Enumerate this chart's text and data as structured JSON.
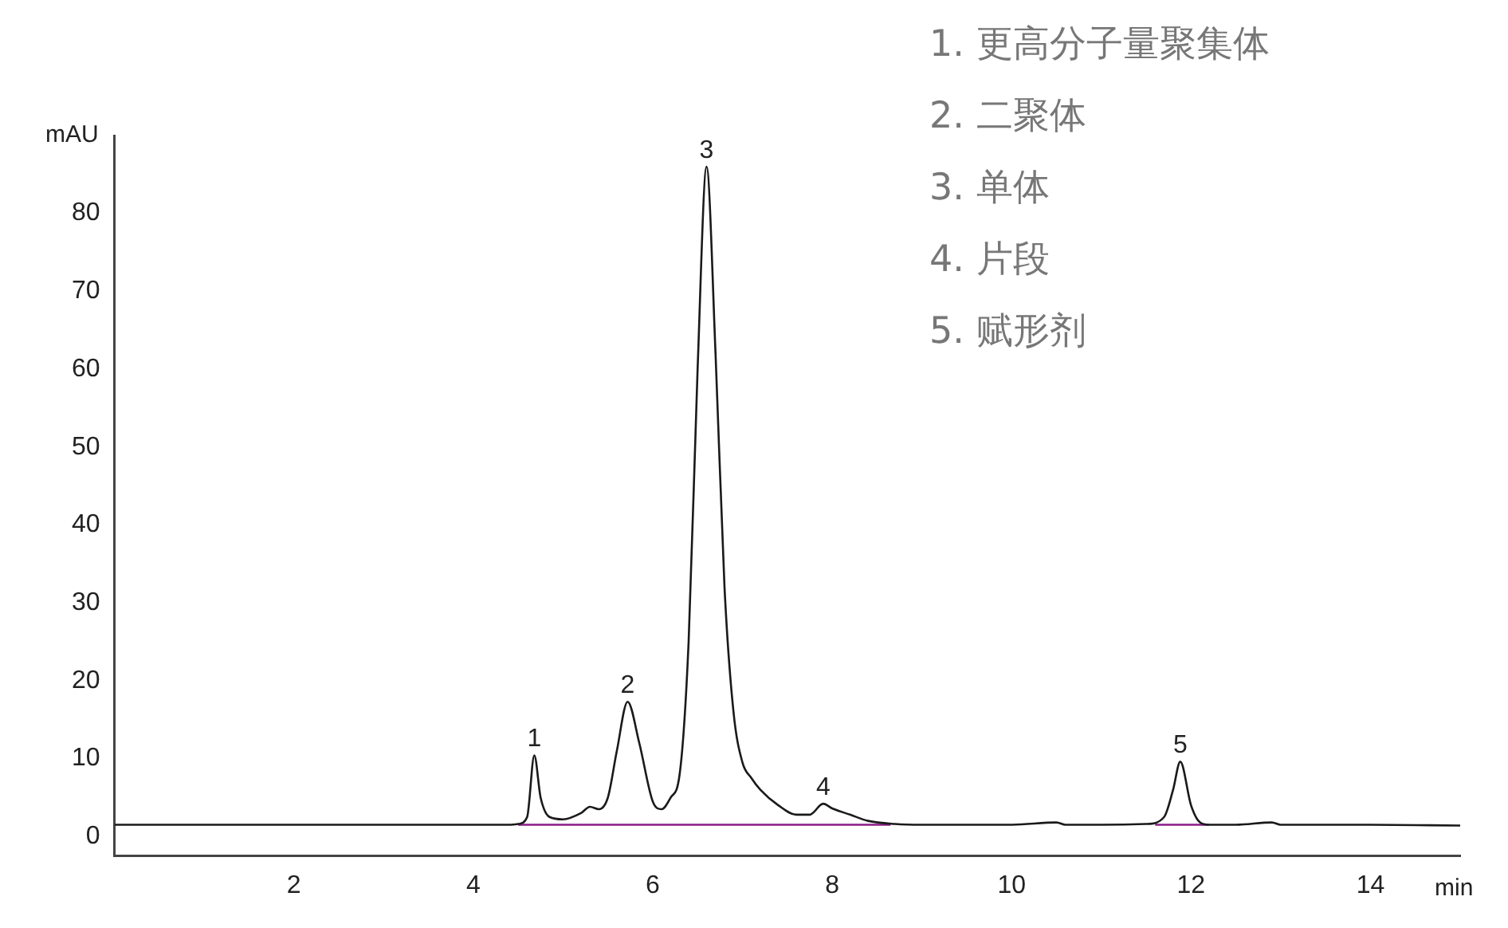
{
  "chart_data": {
    "type": "line",
    "xlabel": "min",
    "ylabel": "mAU",
    "xlim": [
      0,
      15
    ],
    "xticks": [
      2,
      4,
      6,
      8,
      10,
      12,
      14
    ],
    "ylim": [
      -2.5,
      90
    ],
    "yticks": [
      0,
      10,
      20,
      30,
      40,
      50,
      60,
      70,
      80
    ],
    "grid": false,
    "legend": false,
    "marker": "none",
    "line_style": "solid",
    "series": [
      {
        "color": "#1a1a1a",
        "x": [
          0,
          1,
          2,
          3,
          4,
          4.4,
          4.5,
          4.6,
          4.68,
          4.75,
          4.85,
          5.0,
          5.2,
          5.3,
          5.4,
          5.5,
          5.6,
          5.72,
          5.85,
          6.0,
          6.1,
          6.2,
          6.3,
          6.4,
          6.5,
          6.6,
          6.7,
          6.8,
          6.9,
          7.0,
          7.1,
          7.2,
          7.4,
          7.6,
          7.75,
          7.9,
          8.0,
          8.2,
          8.4,
          8.7,
          9,
          10,
          10.5,
          10.6,
          11,
          11.5,
          11.7,
          11.8,
          11.88,
          12.0,
          12.1,
          12.2,
          12.5,
          12.9,
          13.0,
          14,
          15
        ],
        "values": [
          1.5,
          1.5,
          1.5,
          1.5,
          1.5,
          1.5,
          1.6,
          2.5,
          10.4,
          5,
          2.5,
          2.2,
          3,
          3.8,
          3.5,
          5,
          11,
          17.3,
          12,
          4.5,
          3.5,
          5,
          8,
          25,
          60,
          86,
          62,
          32,
          16,
          9.5,
          7.5,
          6,
          4,
          2.8,
          2.8,
          4.2,
          3.6,
          2.8,
          2,
          1.6,
          1.5,
          1.5,
          1.8,
          1.5,
          1.5,
          1.6,
          2.5,
          6,
          9.6,
          4,
          1.8,
          1.5,
          1.5,
          1.8,
          1.5,
          1.5,
          1.4
        ]
      },
      {
        "color": "#8b1a89",
        "x": [
          4.5,
          8.65
        ],
        "values": [
          1.5,
          1.5
        ]
      },
      {
        "color": "#8b1a89",
        "x": [
          11.6,
          12.2
        ],
        "values": [
          1.5,
          1.5
        ]
      }
    ],
    "annotations": [
      {
        "text": "1",
        "x": 4.68,
        "y": 10.4
      },
      {
        "text": "2",
        "x": 5.72,
        "y": 17.3
      },
      {
        "text": "3",
        "x": 6.6,
        "y": 86
      },
      {
        "text": "4",
        "x": 7.9,
        "y": 4.2
      },
      {
        "text": "5",
        "x": 11.88,
        "y": 9.6
      },
      "1. 更高分子量聚集体",
      "2. 二聚体",
      "3. 单体",
      "4. 片段",
      "5. 赋形剂"
    ]
  }
}
